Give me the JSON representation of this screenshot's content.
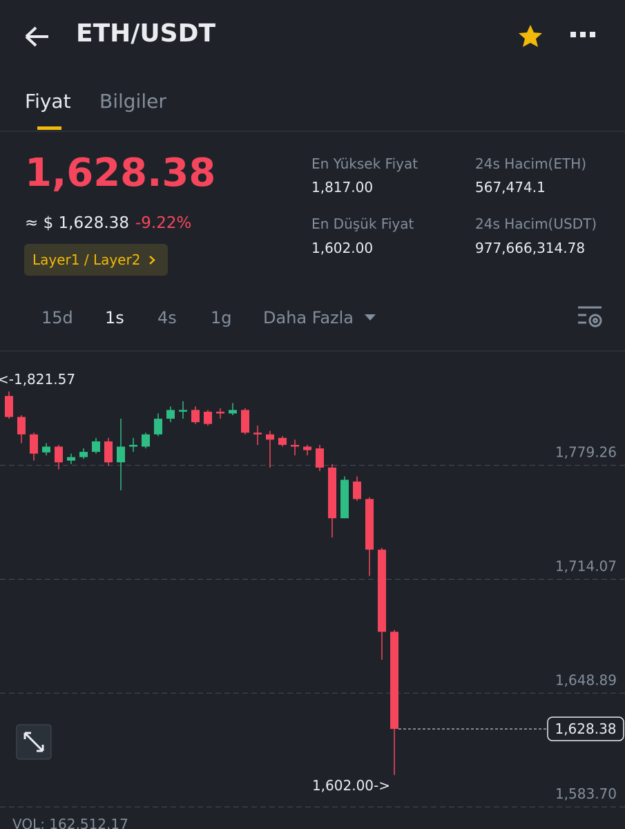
{
  "header": {
    "title": "ETH/USDT"
  },
  "tabs": [
    "Fiyat",
    "Bilgiler"
  ],
  "price": {
    "last": "1,628.38",
    "usd": "≈ $ 1,628.38",
    "change": "-9.22%",
    "tag": "Layer1 / Layer2"
  },
  "stats": [
    {
      "label": "En Yüksek Fiyat",
      "value": "1,817.00"
    },
    {
      "label": "24s Hacim(ETH)",
      "value": "567,474.1"
    },
    {
      "label": "En Düşük Fiyat",
      "value": "1,602.00"
    },
    {
      "label": "24s Hacim(USDT)",
      "value": "977,666,314.78"
    }
  ],
  "intervals": [
    "15d",
    "1s",
    "4s",
    "1g",
    "Daha Fazla"
  ],
  "chart_data": {
    "type": "candlestick",
    "up_color": "#2ebd85",
    "down_color": "#f6465d",
    "ylim": [
      1577,
      1844
    ],
    "yticks": [
      {
        "value": 1779.26,
        "label": "1,779.26"
      },
      {
        "value": 1714.07,
        "label": "1,714.07"
      },
      {
        "value": 1648.89,
        "label": "1,648.89"
      },
      {
        "value": 1583.7,
        "label": "1,583.70"
      }
    ],
    "grid": true,
    "open": [
      1819,
      1807,
      1797,
      1786.7,
      1790,
      1782,
      1784,
      1787,
      1793,
      1781,
      1790,
      1790,
      1797,
      1806,
      1810,
      1811,
      1810,
      1810,
      1809,
      1811,
      1798,
      1797,
      1795,
      1791,
      1790,
      1789,
      1778,
      1749,
      1770,
      1760,
      1731,
      1684
    ],
    "high": [
      1821.57,
      1808,
      1798,
      1792,
      1791,
      1786,
      1789,
      1795,
      1795,
      1806,
      1795,
      1798,
      1809,
      1813,
      1816,
      1813,
      1811,
      1812,
      1815,
      1812,
      1802,
      1799,
      1796,
      1794,
      1791,
      1791,
      1780,
      1773,
      1773,
      1761,
      1732,
      1685
    ],
    "low": [
      1806,
      1792,
      1782,
      1785,
      1777,
      1780,
      1783,
      1786,
      1779,
      1765,
      1787,
      1789,
      1796,
      1804,
      1806,
      1803,
      1802,
      1806,
      1808,
      1797,
      1791,
      1778,
      1790,
      1785,
      1785,
      1776,
      1738,
      1749,
      1759,
      1716,
      1668,
      1602
    ],
    "close": [
      1807,
      1797,
      1786,
      1790,
      1781,
      1784,
      1787,
      1793,
      1781,
      1790,
      1791,
      1797,
      1806,
      1811,
      1811,
      1804,
      1803,
      1809,
      1811,
      1798,
      1797,
      1794,
      1791,
      1790,
      1788,
      1778,
      1749,
      1771,
      1760,
      1731,
      1684,
      1628.38
    ],
    "high_label": "<-1,821.57",
    "low_label": "1,602.00->",
    "last_price": {
      "value": 1628.38,
      "label": "1,628.38"
    },
    "volume_label": "VOL: 162,512.17"
  }
}
